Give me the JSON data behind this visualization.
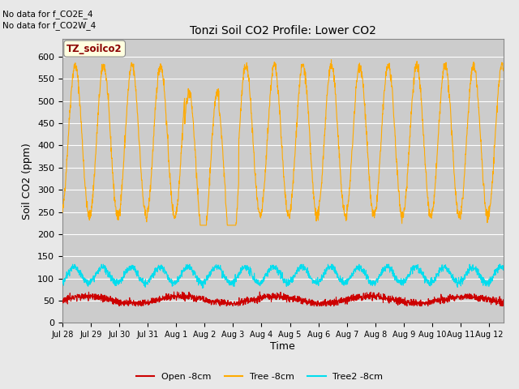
{
  "title": "Tonzi Soil CO2 Profile: Lower CO2",
  "ylabel": "Soil CO2 (ppm)",
  "xlabel": "Time",
  "annotations": [
    "No data for f_CO2E_4",
    "No data for f_CO2W_4"
  ],
  "legend_label": "TZ_soilco2",
  "ylim": [
    0,
    640
  ],
  "yticks": [
    0,
    50,
    100,
    150,
    200,
    250,
    300,
    350,
    400,
    450,
    500,
    550,
    600
  ],
  "xtick_labels": [
    "Jul 28",
    "Jul 29",
    "Jul 30",
    "Jul 31",
    "Aug 1",
    "Aug 2",
    "Aug 3",
    "Aug 4",
    "Aug 5",
    "Aug 6",
    "Aug 7",
    "Aug 8",
    "Aug 9",
    "Aug 10",
    "Aug 11",
    "Aug 12"
  ],
  "line_colors": {
    "open": "#cc0000",
    "tree": "#ffaa00",
    "tree2": "#00ddee"
  },
  "legend_entries": [
    "Open -8cm",
    "Tree -8cm",
    "Tree2 -8cm"
  ],
  "fig_bg_color": "#e8e8e8",
  "plot_bg_color": "#cccccc",
  "n_days": 15.5,
  "tree_peak": 580,
  "tree_trough": 240,
  "open_base": 52,
  "open_amp": 8,
  "tree2_base": 108,
  "tree2_amp": 18
}
